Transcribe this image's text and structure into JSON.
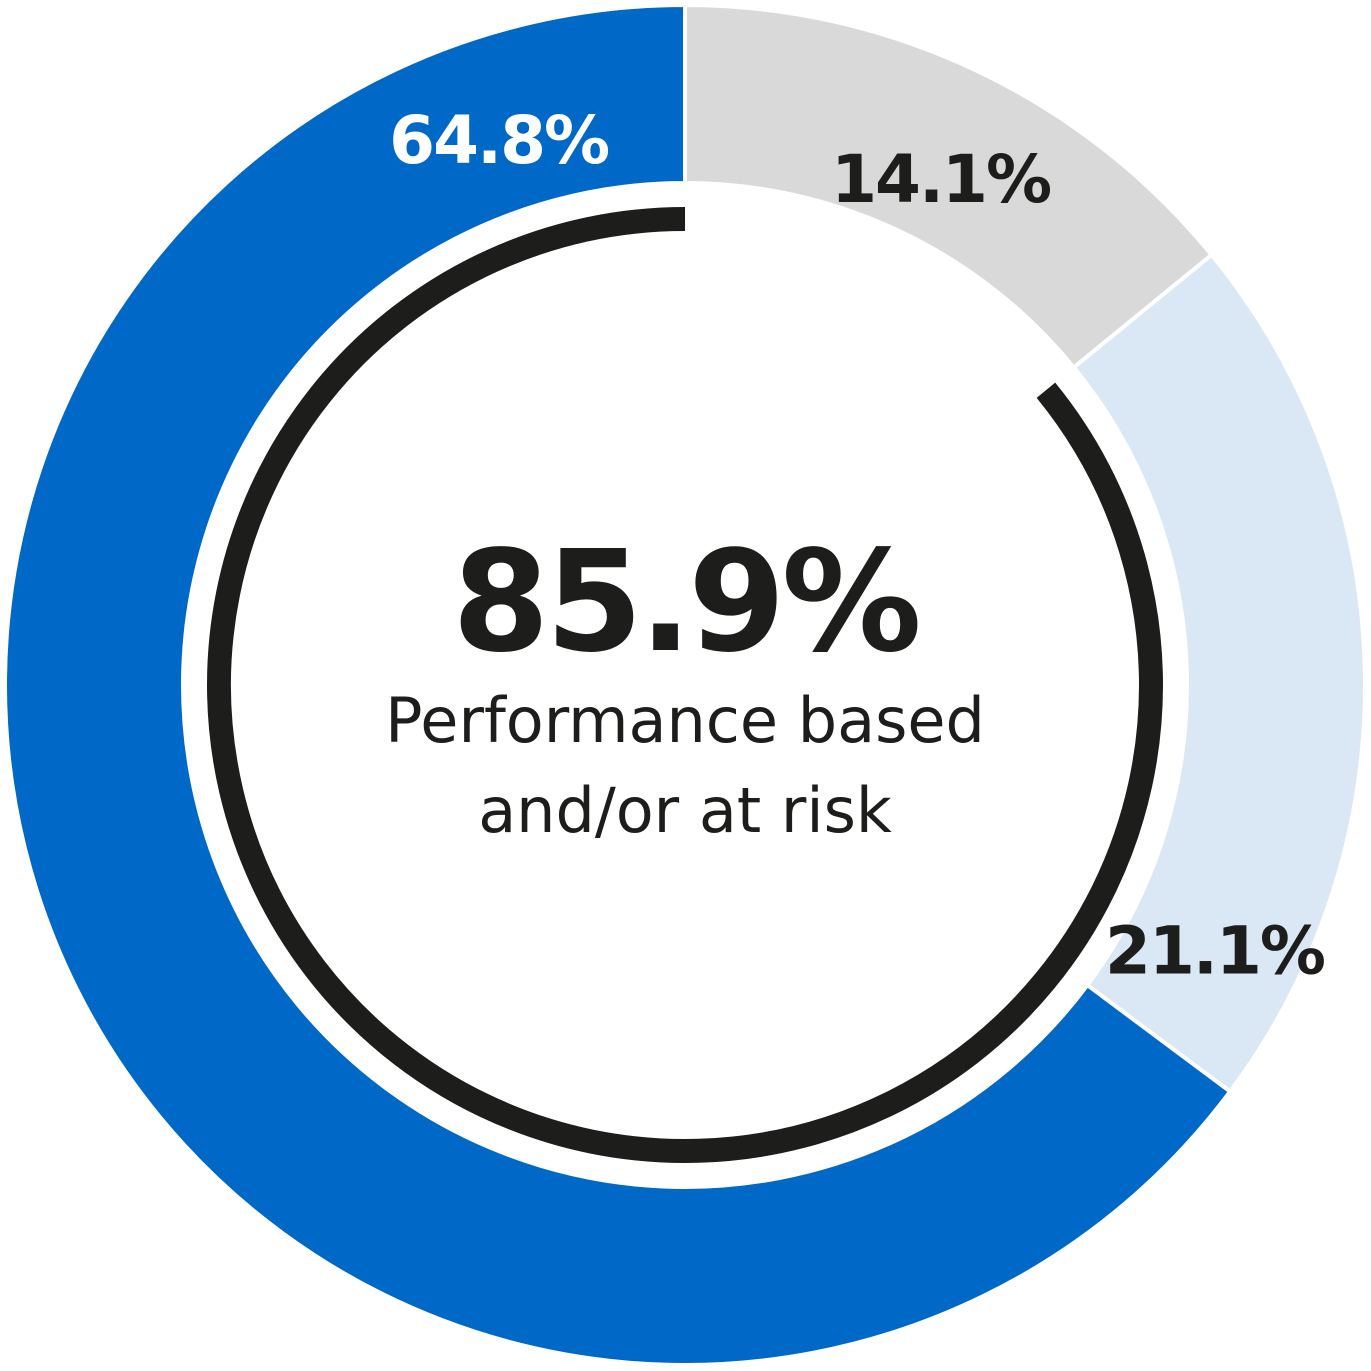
{
  "chart_data": {
    "type": "pie",
    "categories": [
      "",
      "",
      ""
    ],
    "values": [
      14.1,
      21.1,
      64.8
    ],
    "value_labels": [
      "14.1%",
      "21.1%",
      "64.8%"
    ],
    "colors": [
      "#d9d9d9",
      "#dae8f6",
      "#0068c6"
    ],
    "label_colors": [
      "#1d1d1b",
      "#1d1d1b",
      "#ffffff"
    ],
    "title": "",
    "legend": "none",
    "center": {
      "value": "85.9%",
      "caption_line1": "Performance based",
      "caption_line2": "and/or at risk",
      "arc_fraction": 0.859,
      "arc_color": "#1d1d1b"
    }
  }
}
